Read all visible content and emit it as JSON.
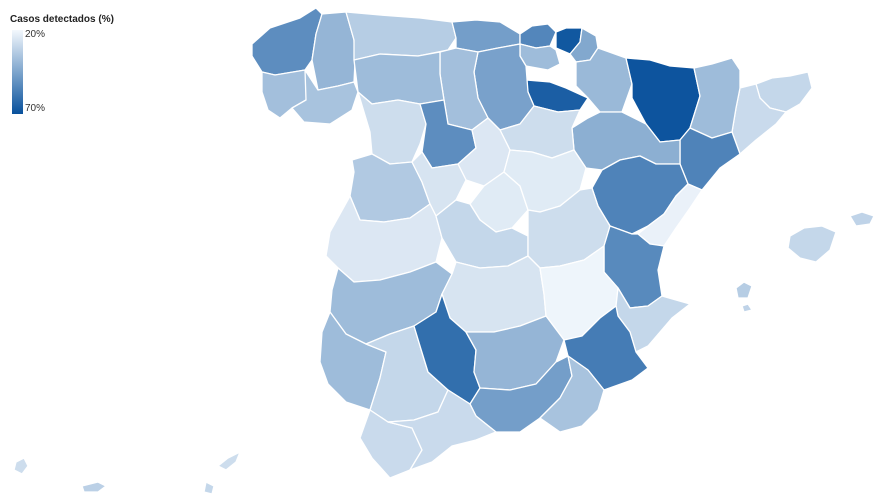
{
  "legend": {
    "title": "Casos detectados (%)",
    "min_label": "20%",
    "max_label": "70%",
    "min_value": 20,
    "max_value": 70,
    "color_low": "#f3f8fd",
    "color_high": "#08519c"
  },
  "map": {
    "regions": [
      {
        "id": "a-coruna",
        "value": 52
      },
      {
        "id": "lugo",
        "value": 40
      },
      {
        "id": "asturias",
        "value": 33
      },
      {
        "id": "cantabria",
        "value": 47
      },
      {
        "id": "bizkaia",
        "value": 54
      },
      {
        "id": "gipuzkoa",
        "value": 68
      },
      {
        "id": "araba",
        "value": 38
      },
      {
        "id": "navarra-west",
        "value": 44
      },
      {
        "id": "navarra",
        "value": 39
      },
      {
        "id": "huesca",
        "value": 69
      },
      {
        "id": "girona",
        "value": 30
      },
      {
        "id": "barcelona",
        "value": 29
      },
      {
        "id": "lleida",
        "value": 38
      },
      {
        "id": "tarragona",
        "value": 55
      },
      {
        "id": "zaragoza",
        "value": 42
      },
      {
        "id": "la-rioja",
        "value": 66
      },
      {
        "id": "burgos",
        "value": 46
      },
      {
        "id": "palencia",
        "value": 37
      },
      {
        "id": "leon",
        "value": 38
      },
      {
        "id": "pontevedra",
        "value": 37
      },
      {
        "id": "ourense",
        "value": 36
      },
      {
        "id": "zamora",
        "value": 28
      },
      {
        "id": "valladolid",
        "value": 52
      },
      {
        "id": "soria",
        "value": 28
      },
      {
        "id": "salamanca",
        "value": 34
      },
      {
        "id": "segovia",
        "value": 25
      },
      {
        "id": "avila",
        "value": 26
      },
      {
        "id": "madrid",
        "value": 24
      },
      {
        "id": "guadalajara",
        "value": 24
      },
      {
        "id": "teruel",
        "value": 55
      },
      {
        "id": "castellon",
        "value": 22
      },
      {
        "id": "caceres",
        "value": 25
      },
      {
        "id": "toledo",
        "value": 30
      },
      {
        "id": "cuenca",
        "value": 28
      },
      {
        "id": "valencia",
        "value": 53
      },
      {
        "id": "badajoz",
        "value": 38
      },
      {
        "id": "ciudad-real",
        "value": 26
      },
      {
        "id": "albacete",
        "value": 21
      },
      {
        "id": "alicante",
        "value": 30
      },
      {
        "id": "murcia",
        "value": 57
      },
      {
        "id": "huelva",
        "value": 38
      },
      {
        "id": "sevilla",
        "value": 30
      },
      {
        "id": "cordoba",
        "value": 61
      },
      {
        "id": "jaen",
        "value": 40
      },
      {
        "id": "granada",
        "value": 47
      },
      {
        "id": "almeria",
        "value": 36
      },
      {
        "id": "cadiz",
        "value": 29
      },
      {
        "id": "malaga",
        "value": 29
      },
      {
        "id": "mallorca",
        "value": 30
      },
      {
        "id": "menorca",
        "value": 31
      },
      {
        "id": "ibiza",
        "value": 33
      },
      {
        "id": "formentera",
        "value": 31
      },
      {
        "id": "ceuta",
        "value": 28
      },
      {
        "id": "melilla",
        "value": 32
      },
      {
        "id": "alboran-1",
        "value": 28
      },
      {
        "id": "alboran-2",
        "value": 30
      }
    ]
  }
}
